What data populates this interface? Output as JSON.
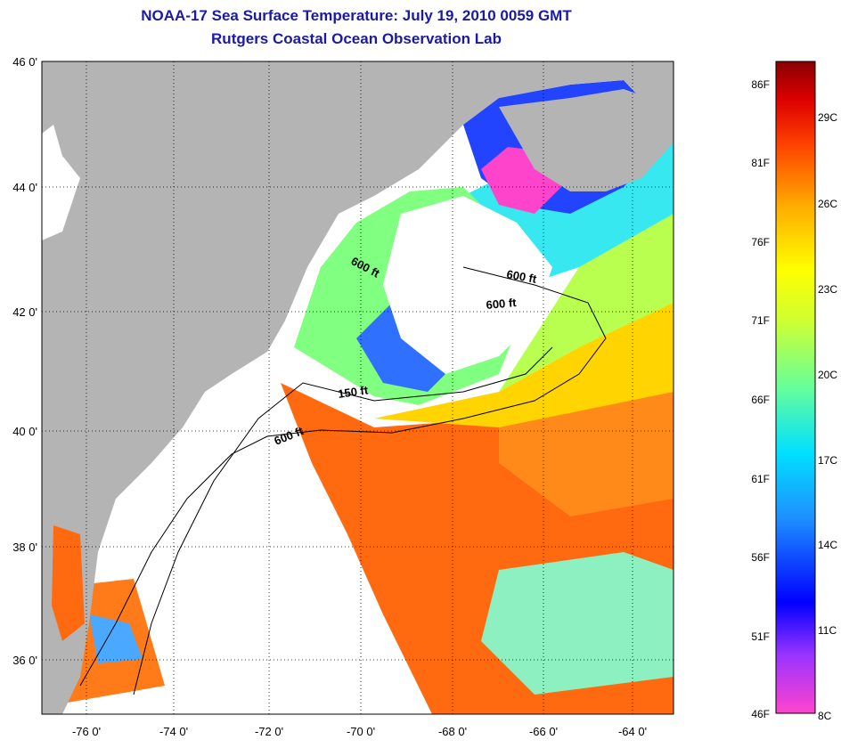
{
  "header": {
    "title": "NOAA-17 Sea Surface Temperature:  July 19, 2010 0059 GMT",
    "subtitle": "Rutgers Coastal Ocean Observation Lab"
  },
  "map": {
    "lat_labels": [
      "46 0'",
      "44 0'",
      "42 0'",
      "40 0'",
      "38 0'",
      "36 0'"
    ],
    "lon_labels": [
      "-76 0'",
      "-74 0'",
      "-72 0'",
      "-70 0'",
      "-68 0'",
      "-66 0'",
      "-64 0'"
    ],
    "depth_labels": [
      "600 ft",
      "600 ft",
      "600 ft",
      "150 ft",
      "600 ft"
    ],
    "land_color": "#b4b4b4",
    "nodata_color": "#ffffff"
  },
  "colorbar": {
    "f_labels": [
      "86F",
      "81F",
      "76F",
      "71F",
      "66F",
      "61F",
      "56F",
      "51F",
      "46F"
    ],
    "c_labels": [
      "29C",
      "26C",
      "23C",
      "20C",
      "17C",
      "14C",
      "11C",
      "8C"
    ]
  }
}
